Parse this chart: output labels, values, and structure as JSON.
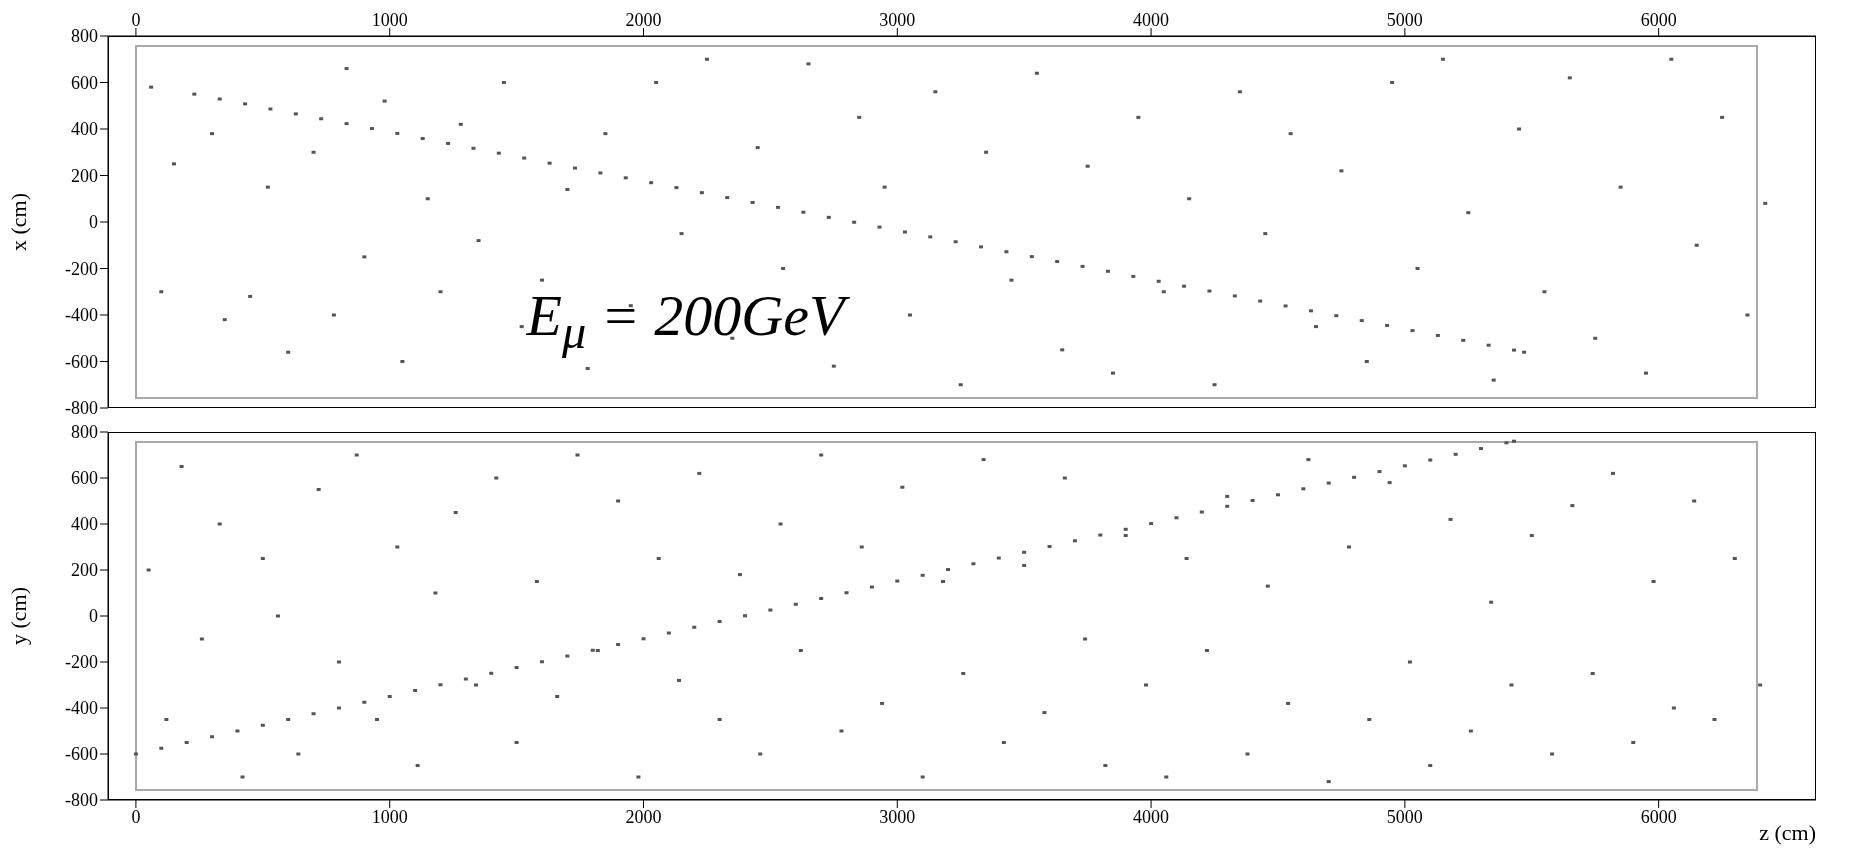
{
  "chart_data": [
    {
      "type": "scatter",
      "ylabel": "x (cm)",
      "annotations": [
        "E$_{μ}$ = 200GeV"
      ],
      "xlim": [
        -110,
        6620
      ],
      "xticks": [
        0,
        1000,
        2000,
        3000,
        4000,
        5000,
        6000
      ],
      "ylim": [
        -800,
        800
      ],
      "yticks": [
        -800,
        -600,
        -400,
        -200,
        0,
        200,
        400,
        600,
        800
      ],
      "marker": "square",
      "grid": false,
      "series": [
        {
          "color": "#555555",
          "x": [
            230,
            330,
            430,
            530,
            630,
            730,
            830,
            930,
            1030,
            1130,
            1230,
            1330,
            1430,
            1530,
            1630,
            1730,
            1830,
            1930,
            2030,
            2130,
            2230,
            2330,
            2430,
            2530,
            2630,
            2730,
            2830,
            2930,
            3030,
            3130,
            3230,
            3330,
            3430,
            3530,
            3630,
            3730,
            3830,
            3930,
            4030,
            4130,
            4230,
            4330,
            4430,
            4530,
            4630,
            4730,
            4830,
            4930,
            5030,
            5130,
            5230,
            5330,
            5430,
            5470
          ],
          "values": [
            550,
            529,
            508,
            486,
            465,
            444,
            423,
            402,
            381,
            359,
            338,
            317,
            296,
            275,
            253,
            232,
            211,
            190,
            169,
            148,
            126,
            105,
            84,
            63,
            42,
            20,
            -1,
            -22,
            -43,
            -64,
            -85,
            -107,
            -128,
            -149,
            -170,
            -191,
            -212,
            -234,
            -255,
            -276,
            -297,
            -318,
            -340,
            -361,
            -382,
            -403,
            -424,
            -445,
            -467,
            -488,
            -509,
            -530,
            -551,
            -560
          ]
        },
        {
          "color": "#555555",
          "x": [
            60,
            100,
            150,
            300,
            350,
            450,
            520,
            600,
            700,
            780,
            830,
            900,
            980,
            1050,
            1150,
            1200,
            1280,
            1350,
            1450,
            1520,
            1600,
            1700,
            1780,
            1850,
            1950,
            2050,
            2150,
            2250,
            2350,
            2450,
            2550,
            2650,
            2750,
            2850,
            2950,
            3050,
            3150,
            3250,
            3350,
            3450,
            3550,
            3650,
            3750,
            3850,
            3950,
            4050,
            4150,
            4250,
            4350,
            4450,
            4550,
            4650,
            4750,
            4850,
            4950,
            5050,
            5150,
            5250,
            5350,
            5450,
            5550,
            5650,
            5750,
            5850,
            5950,
            6050,
            6150,
            6250,
            6350,
            6420
          ],
          "values": [
            580,
            -300,
            250,
            380,
            -420,
            -320,
            150,
            -560,
            300,
            -400,
            660,
            -150,
            520,
            -600,
            100,
            -300,
            420,
            -80,
            600,
            -450,
            -250,
            140,
            -630,
            380,
            -360,
            600,
            -50,
            700,
            -500,
            320,
            -200,
            680,
            -620,
            450,
            150,
            -400,
            560,
            -700,
            300,
            -250,
            640,
            -550,
            240,
            -650,
            450,
            -300,
            100,
            -700,
            560,
            -50,
            380,
            -450,
            220,
            -600,
            600,
            -200,
            700,
            40,
            -680,
            400,
            -300,
            620,
            -500,
            150,
            -650,
            700,
            -100,
            450,
            -400,
            80
          ]
        }
      ]
    },
    {
      "type": "scatter",
      "ylabel": "y (cm)",
      "xlabel": "z (cm)",
      "xlim": [
        -110,
        6620
      ],
      "xticks": [
        0,
        1000,
        2000,
        3000,
        4000,
        5000,
        6000
      ],
      "ylim": [
        -800,
        800
      ],
      "yticks": [
        -800,
        -600,
        -400,
        -200,
        0,
        200,
        400,
        600,
        800
      ],
      "marker": "square",
      "grid": false,
      "series": [
        {
          "color": "#555555",
          "x": [
            0,
            100,
            200,
            300,
            400,
            500,
            600,
            700,
            800,
            900,
            1000,
            1100,
            1200,
            1300,
            1400,
            1500,
            1600,
            1700,
            1800,
            1900,
            2000,
            2100,
            2200,
            2300,
            2400,
            2500,
            2600,
            2700,
            2800,
            2900,
            3000,
            3100,
            3200,
            3300,
            3400,
            3500,
            3600,
            3700,
            3800,
            3900,
            4000,
            4100,
            4200,
            4300,
            4400,
            4500,
            4600,
            4700,
            4800,
            4900,
            5000,
            5100,
            5200,
            5300,
            5400,
            5430
          ],
          "values": [
            -600,
            -575,
            -550,
            -525,
            -500,
            -475,
            -450,
            -425,
            -400,
            -375,
            -350,
            -324,
            -299,
            -274,
            -249,
            -224,
            -199,
            -174,
            -149,
            -124,
            -99,
            -74,
            -49,
            -24,
            1,
            26,
            51,
            76,
            101,
            126,
            152,
            177,
            202,
            227,
            252,
            277,
            302,
            327,
            352,
            377,
            402,
            427,
            452,
            477,
            502,
            527,
            553,
            578,
            603,
            628,
            653,
            678,
            703,
            728,
            753,
            760
          ]
        },
        {
          "color": "#555555",
          "x": [
            50,
            120,
            180,
            260,
            330,
            420,
            500,
            560,
            640,
            720,
            800,
            870,
            950,
            1030,
            1110,
            1180,
            1260,
            1340,
            1420,
            1500,
            1580,
            1660,
            1740,
            1820,
            1900,
            1980,
            2060,
            2140,
            2220,
            2300,
            2380,
            2460,
            2540,
            2620,
            2700,
            2780,
            2860,
            2940,
            3020,
            3100,
            3180,
            3260,
            3340,
            3420,
            3500,
            3580,
            3660,
            3740,
            3820,
            3900,
            3980,
            4060,
            4140,
            4220,
            4300,
            4380,
            4460,
            4540,
            4620,
            4700,
            4780,
            4860,
            4940,
            5020,
            5100,
            5180,
            5260,
            5340,
            5420,
            5500,
            5580,
            5660,
            5740,
            5820,
            5900,
            5980,
            6060,
            6140,
            6220,
            6300,
            6400
          ],
          "values": [
            200,
            -450,
            650,
            -100,
            400,
            -700,
            250,
            0,
            -600,
            550,
            -200,
            700,
            -450,
            300,
            -650,
            100,
            450,
            -300,
            600,
            -550,
            150,
            -350,
            700,
            -150,
            500,
            -700,
            250,
            -280,
            620,
            -450,
            180,
            -600,
            400,
            -150,
            700,
            -500,
            300,
            -380,
            560,
            -700,
            150,
            -250,
            680,
            -550,
            220,
            -420,
            600,
            -100,
            -650,
            350,
            -300,
            -700,
            250,
            -150,
            520,
            -600,
            130,
            -380,
            680,
            -720,
            300,
            -450,
            580,
            -200,
            -650,
            420,
            -500,
            60,
            -300,
            350,
            -600,
            480,
            -250,
            620,
            -550,
            150,
            -400,
            500,
            -450,
            250,
            -300
          ]
        }
      ]
    }
  ]
}
